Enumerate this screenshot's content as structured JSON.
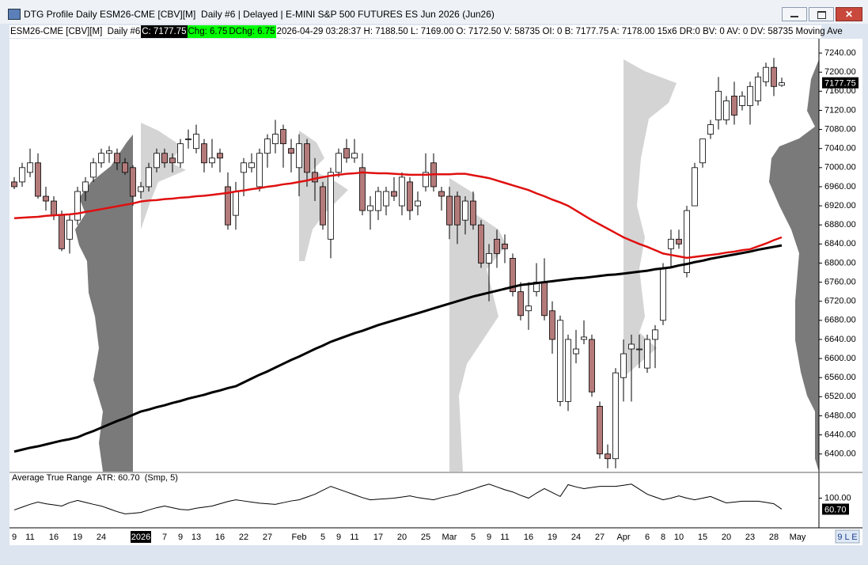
{
  "window": {
    "title": "DTG Profile Daily ESM26-CME [CBV][M]  Daily #6 | Delayed | E-MINI S&P 500 FUTURES ES Jun 2026 (Jun26)"
  },
  "info_bar": {
    "symbol": "ESM26-CME [CBV][M]  Daily #6",
    "close": "C: 7177.75",
    "change": "Chg: 6.75",
    "dchange": "DChg: 6.75",
    "details": "2026-04-29 03:28:37 H: 7188.50 L: 7169.00 O: 7172.50 V: 58735 OI: 0 B: 7177.75 A: 7178.00 15x6 DR:0 BV: 0 AV: 0 DV: 58735 Moving Ave"
  },
  "status": "9 L E",
  "chart_data": [
    {
      "type": "candlestick",
      "up_color": "#ffffff",
      "down_color": "#b47a7a",
      "categories": [
        "9",
        null,
        "11",
        null,
        null,
        "16",
        null,
        null,
        "19",
        null,
        null,
        "24",
        null,
        null,
        null,
        null,
        "2026",
        null,
        null,
        "7",
        null,
        "9",
        null,
        "13",
        null,
        null,
        "16",
        null,
        null,
        "22",
        null,
        null,
        "27",
        null,
        null,
        null,
        "Feb",
        null,
        null,
        "5",
        null,
        "9",
        null,
        "11",
        null,
        null,
        "17",
        null,
        null,
        "20",
        null,
        null,
        "25",
        null,
        null,
        "Mar",
        null,
        null,
        "5",
        null,
        "9",
        null,
        "11",
        null,
        null,
        "16",
        null,
        null,
        "19",
        null,
        null,
        "24",
        null,
        null,
        "27",
        null,
        null,
        "Apr",
        null,
        null,
        "6",
        null,
        "8",
        null,
        "10",
        null,
        null,
        "15",
        null,
        null,
        "20",
        null,
        null,
        "23",
        null,
        null,
        "28",
        null,
        null,
        "May"
      ],
      "open": [
        6970,
        6970,
        6990,
        7010,
        6940,
        6930,
        6900,
        6850,
        6890,
        6950,
        6980,
        7010,
        7030,
        7030,
        7010,
        7000,
        6950,
        6960,
        7000,
        7030,
        7020,
        7010,
        7060,
        7040,
        7050,
        7010,
        7030,
        6960,
        6900,
        6990,
        7000,
        6960,
        7030,
        7050,
        7080,
        7040,
        7000,
        7050,
        6990,
        6960,
        6850,
        6990,
        7040,
        7020,
        7000,
        6910,
        6910,
        6920,
        6950,
        6920,
        6970,
        6920,
        6960,
        7010,
        6950,
        6940,
        6940,
        6890,
        6930,
        6880,
        6800,
        6850,
        6840,
        6810,
        6740,
        6700,
        6740,
        6760,
        6700,
        6510,
        6510,
        6610,
        6640,
        6640,
        6500,
        6400,
        6390,
        6560,
        6620,
        6620,
        6580,
        6640,
        6680,
        6830,
        6850,
        6780,
        6920,
        7010,
        7070,
        7100,
        7100,
        7150,
        7130,
        7130,
        7140,
        7180,
        7210,
        7172.5,
        null,
        null
      ],
      "high": [
        6980,
        7010,
        7040,
        7030,
        6960,
        6940,
        6910,
        6900,
        6960,
        6980,
        7020,
        7040,
        7045,
        7040,
        7020,
        7005,
        6970,
        7010,
        7040,
        7040,
        7030,
        7060,
        7080,
        7090,
        7060,
        7060,
        7040,
        6990,
        6970,
        7020,
        7030,
        7040,
        7070,
        7100,
        7090,
        7060,
        7070,
        7060,
        7020,
        6970,
        7000,
        7040,
        7060,
        7060,
        7030,
        6940,
        6960,
        6960,
        6980,
        6990,
        6980,
        6950,
        7030,
        7030,
        6960,
        6960,
        6950,
        6940,
        6950,
        6890,
        6840,
        6870,
        6860,
        6820,
        6760,
        6760,
        6800,
        6810,
        6720,
        6690,
        6650,
        6660,
        6680,
        6650,
        6510,
        6420,
        6580,
        6640,
        6650,
        6650,
        6650,
        6670,
        6800,
        6870,
        6870,
        6920,
        7010,
        7060,
        7100,
        7190,
        7150,
        7180,
        7160,
        7180,
        7200,
        7220,
        7230,
        7188.5,
        null,
        null
      ],
      "low": [
        6955,
        6960,
        6980,
        6935,
        6910,
        6890,
        6825,
        6820,
        6880,
        6930,
        6970,
        7000,
        7010,
        6995,
        6985,
        6920,
        6935,
        6950,
        6990,
        7000,
        6990,
        7000,
        7040,
        7030,
        6990,
        7000,
        6990,
        6870,
        6870,
        6940,
        6990,
        6950,
        7000,
        7030,
        7000,
        6990,
        6940,
        6960,
        6930,
        6870,
        6810,
        6980,
        7010,
        7010,
        6900,
        6870,
        6890,
        6900,
        6930,
        6900,
        6890,
        6900,
        6950,
        6950,
        6910,
        6850,
        6840,
        6860,
        6870,
        6790,
        6720,
        6790,
        6800,
        6730,
        6680,
        6660,
        6730,
        6680,
        6610,
        6500,
        6490,
        6590,
        6630,
        6520,
        6390,
        6370,
        6370,
        6510,
        6510,
        6580,
        6570,
        6580,
        6670,
        6790,
        6830,
        6770,
        6920,
        7000,
        7060,
        7080,
        7090,
        7090,
        7120,
        7090,
        7130,
        7170,
        7150,
        7169,
        null,
        null
      ],
      "close": [
        6960,
        7000,
        7010,
        6940,
        6930,
        6900,
        6830,
        6890,
        6950,
        6970,
        7010,
        7030,
        7035,
        7010,
        6990,
        6940,
        6960,
        7000,
        7030,
        7010,
        7010,
        7050,
        7060,
        7070,
        7010,
        7020,
        7020,
        6880,
        6950,
        7010,
        7010,
        7030,
        7060,
        7070,
        7050,
        7030,
        7050,
        6990,
        6970,
        6880,
        6990,
        7030,
        7020,
        7030,
        6910,
        6920,
        6950,
        6950,
        6940,
        6980,
        6910,
        6930,
        6990,
        6960,
        6940,
        6880,
        6880,
        6930,
        6880,
        6800,
        6820,
        6820,
        6830,
        6740,
        6690,
        6710,
        6760,
        6690,
        6640,
        6680,
        6640,
        6620,
        6645,
        6530,
        6400,
        6390,
        6570,
        6610,
        6630,
        6620,
        6640,
        6660,
        6790,
        6850,
        6840,
        6910,
        7000,
        7060,
        7090,
        7160,
        7140,
        7110,
        7150,
        7170,
        7190,
        7210,
        7170,
        7177.75,
        null,
        null
      ],
      "series": [
        {
          "color": "#e01010",
          "values": [
            6894,
            6895,
            6896,
            6897,
            6899,
            6900,
            6901,
            6902,
            6904,
            6907,
            6910,
            6913,
            6916,
            6919,
            6922,
            6925,
            6929,
            6931,
            6932,
            6934,
            6935,
            6937,
            6938,
            6940,
            6941,
            6943,
            6945,
            6947,
            6950,
            6952,
            6955,
            6957,
            6960,
            6962,
            6965,
            6967,
            6970,
            6973,
            6977,
            6980,
            6983,
            6985,
            6987,
            6988,
            6990,
            6989,
            6988,
            6988,
            6987,
            6986,
            6985,
            6985,
            6985,
            6986,
            6986,
            6986,
            6987,
            6987,
            6984,
            6981,
            6978,
            6973,
            6968,
            6963,
            6958,
            6953,
            6946,
            6940,
            6933,
            6927,
            6920,
            6910,
            6900,
            6890,
            6881,
            6872,
            6863,
            6854,
            6847,
            6840,
            6834,
            6827,
            6820,
            6817,
            6814,
            6811,
            6813,
            6815,
            6817,
            6819,
            6822,
            6824,
            6827,
            6829,
            6835,
            6841,
            6848,
            6854,
            null,
            null
          ]
        },
        {
          "color": "#000000",
          "values": [
            6405,
            6409,
            6413,
            6416,
            6420,
            6424,
            6428,
            6431,
            6435,
            6442,
            6448,
            6455,
            6462,
            6469,
            6475,
            6482,
            6489,
            6493,
            6498,
            6502,
            6507,
            6511,
            6516,
            6520,
            6524,
            6529,
            6533,
            6538,
            6542,
            6550,
            6558,
            6566,
            6573,
            6581,
            6589,
            6597,
            6604,
            6612,
            6620,
            6627,
            6635,
            6641,
            6647,
            6653,
            6658,
            6664,
            6670,
            6675,
            6680,
            6685,
            6690,
            6695,
            6700,
            6705,
            6710,
            6715,
            6720,
            6725,
            6730,
            6734,
            6738,
            6742,
            6746,
            6750,
            6754,
            6756,
            6758,
            6760,
            6762,
            6764,
            6766,
            6768,
            6769,
            6771,
            6773,
            6775,
            6776,
            6778,
            6780,
            6782,
            6784,
            6787,
            6789,
            6791,
            6795,
            6798,
            6802,
            6805,
            6809,
            6812,
            6815,
            6818,
            6821,
            6824,
            6828,
            6831,
            6834,
            6837,
            null,
            null
          ]
        }
      ],
      "ylim": [
        6363,
        7265
      ],
      "yticks": [
        {
          "value": 7240,
          "label": "7240.00"
        },
        {
          "value": 7200,
          "label": "7200.00"
        },
        {
          "value": 7160,
          "label": "7160.00"
        },
        {
          "value": 7120,
          "label": "7120.00"
        },
        {
          "value": 7080,
          "label": "7080.00"
        },
        {
          "value": 7040,
          "label": "7040.00"
        },
        {
          "value": 7000,
          "label": "7000.00"
        },
        {
          "value": 6960,
          "label": "6960.00"
        },
        {
          "value": 6920,
          "label": "6920.00"
        },
        {
          "value": 6880,
          "label": "6880.00"
        },
        {
          "value": 6840,
          "label": "6840.00"
        },
        {
          "value": 6800,
          "label": "6800.00"
        },
        {
          "value": 6760,
          "label": "6760.00"
        },
        {
          "value": 6720,
          "label": "6720.00"
        },
        {
          "value": 6680,
          "label": "6680.00"
        },
        {
          "value": 6640,
          "label": "6640.00"
        },
        {
          "value": 6600,
          "label": "6600.00"
        },
        {
          "value": 6560,
          "label": "6560.00"
        },
        {
          "value": 6520,
          "label": "6520.00"
        },
        {
          "value": 6480,
          "label": "6480.00"
        },
        {
          "value": 6440,
          "label": "6440.00"
        },
        {
          "value": 6400,
          "label": "6400.00"
        }
      ],
      "last_price": 7177.75
    },
    {
      "type": "line",
      "title": "Average True Range  ATR: 60.70  (Smp, 5)",
      "color": "#000000",
      "values": [
        58,
        68,
        78,
        86,
        80,
        76,
        72,
        84,
        92,
        85,
        78,
        72,
        62,
        52,
        44,
        46,
        49,
        58,
        66,
        72,
        66,
        60,
        58,
        64,
        68,
        72,
        80,
        88,
        94,
        90,
        86,
        82,
        80,
        78,
        84,
        90,
        94,
        104,
        114,
        128,
        142,
        132,
        122,
        112,
        102,
        94,
        96,
        98,
        100,
        104,
        108,
        102,
        98,
        94,
        102,
        108,
        114,
        124,
        132,
        142,
        150,
        140,
        130,
        122,
        110,
        100,
        118,
        134,
        120,
        106,
        148,
        140,
        134,
        138,
        142,
        142,
        142,
        146,
        150,
        132,
        114,
        104,
        94,
        100,
        108,
        100,
        94,
        100,
        106,
        94,
        83,
        86,
        89,
        89,
        89,
        85,
        80,
        60.7,
        null,
        null
      ],
      "ylim": [
        0,
        155
      ],
      "yticks": [
        {
          "value": 100,
          "label": "100.00"
        }
      ],
      "last_label": {
        "value": 60.7,
        "label": "60.70"
      }
    }
  ]
}
